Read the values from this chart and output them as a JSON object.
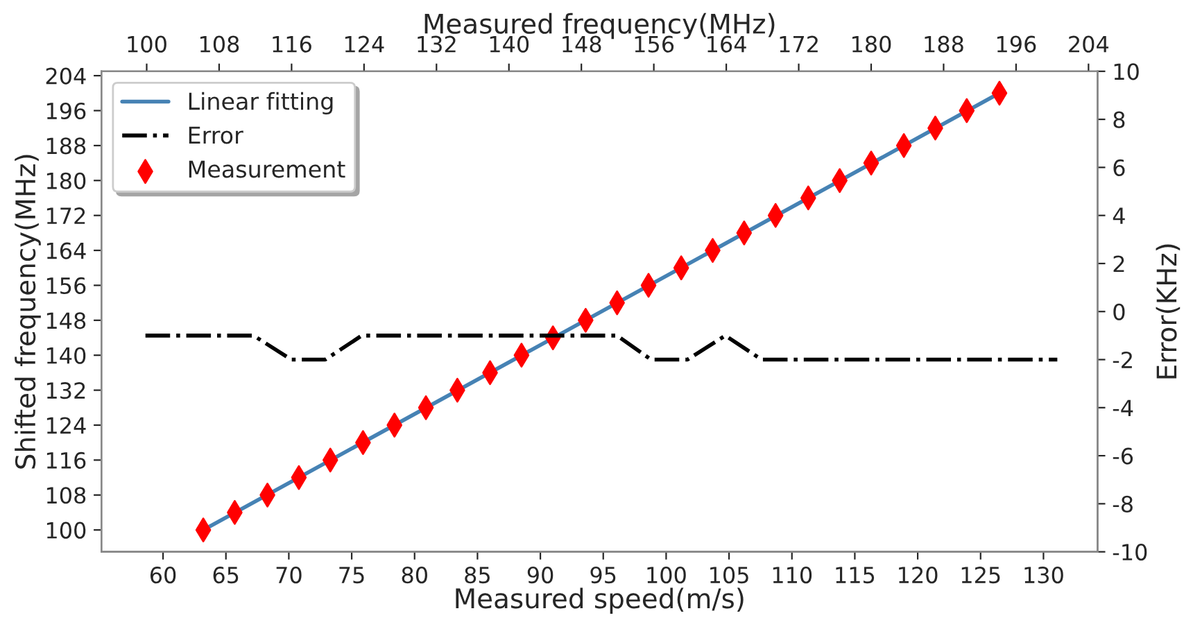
{
  "chart_data": {
    "type": "line",
    "xlabel": "Measured speed(m/s)",
    "ylabel": "Shifted frequency(MHz)",
    "y2label": "Error(KHz)",
    "x2label": "Measured frequency(MHz)",
    "series": [
      {
        "name": "Linear fitting",
        "color": "#4682b4",
        "line_style": "solid",
        "marker": "none",
        "x": [
          63.2,
          126.5
        ],
        "values": [
          100,
          200
        ]
      },
      {
        "name": "Error",
        "axis": "y2",
        "color": "#000000",
        "line_style": "dashdot",
        "marker": "none",
        "x": [
          58.6,
          67.2,
          70.2,
          72.9,
          75.8,
          96.1,
          98.8,
          101.7,
          104.7,
          107.6,
          131.1
        ],
        "values": [
          -1,
          -1,
          -2,
          -2,
          -1,
          -1,
          -2,
          -2,
          -1,
          -2,
          -2
        ]
      },
      {
        "name": "Measurement",
        "type": "scatter",
        "color": "#ff0000",
        "marker": "diamond",
        "x": [
          63.2,
          65.7,
          68.3,
          70.8,
          73.3,
          75.9,
          78.4,
          80.9,
          83.4,
          86.0,
          88.5,
          91.0,
          93.6,
          96.1,
          98.6,
          101.2,
          103.7,
          106.2,
          108.7,
          111.3,
          113.8,
          116.3,
          118.9,
          121.4,
          123.9,
          126.5
        ],
        "values": [
          100,
          104,
          108,
          112,
          116,
          120,
          124,
          128,
          132,
          136,
          140,
          144,
          148,
          152,
          156,
          160,
          164,
          168,
          172,
          176,
          180,
          184,
          188,
          192,
          196,
          200
        ]
      }
    ],
    "xlim": [
      55.1,
      134.3
    ],
    "xticks": [
      60,
      65,
      70,
      75,
      80,
      85,
      90,
      95,
      100,
      105,
      110,
      115,
      120,
      125,
      130
    ],
    "x2lim": [
      95,
      205
    ],
    "x2ticks": [
      100,
      108,
      116,
      124,
      132,
      140,
      148,
      156,
      164,
      172,
      180,
      188,
      196,
      204
    ],
    "ylim": [
      95,
      205
    ],
    "yticks": [
      100,
      108,
      116,
      124,
      132,
      140,
      148,
      156,
      164,
      172,
      180,
      188,
      196,
      204
    ],
    "y2lim": [
      -10,
      10
    ],
    "y2ticks": [
      -10,
      -8,
      -6,
      -4,
      -2,
      0,
      2,
      4,
      6,
      8,
      10
    ],
    "grid": false,
    "legend": "top left"
  }
}
